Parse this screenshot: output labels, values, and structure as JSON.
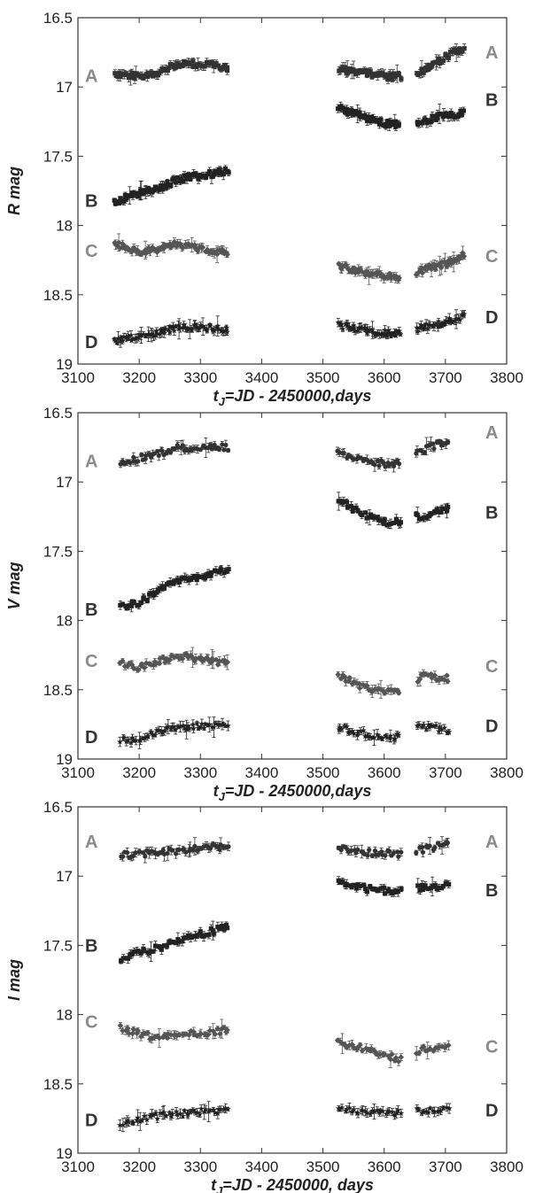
{
  "chart_data": [
    {
      "type": "scatter",
      "title": "",
      "ylabel": "R mag",
      "xlabel": "t_J=JD - 2450000,days",
      "xlabel_main": "t",
      "xlabel_sub": "J",
      "xlabel_rest": "=JD - 2450000,days",
      "xlim": [
        3100,
        3800
      ],
      "ylim": [
        19,
        16.5
      ],
      "y_inverted": true,
      "xticks": [
        "3100",
        "3200",
        "3300",
        "3400",
        "3500",
        "3600",
        "3700",
        "3800"
      ],
      "yticks": [
        "16.5",
        "17",
        "17.5",
        "18",
        "18.5",
        "19"
      ],
      "labels": {
        "left": [
          {
            "text": "A",
            "y": 16.92,
            "color": "#8a8a8a"
          },
          {
            "text": "B",
            "y": 17.82,
            "color": "#333333"
          },
          {
            "text": "C",
            "y": 18.18,
            "color": "#8a8a8a"
          },
          {
            "text": "D",
            "y": 18.84,
            "color": "#333333"
          }
        ],
        "right": [
          {
            "text": "A",
            "y": 16.75,
            "color": "#8a8a8a"
          },
          {
            "text": "B",
            "y": 17.09,
            "color": "#333333"
          },
          {
            "text": "C",
            "y": 18.22,
            "color": "#8a8a8a"
          },
          {
            "text": "D",
            "y": 18.66,
            "color": "#333333"
          }
        ]
      },
      "series": [
        {
          "name": "A",
          "color": "#333333",
          "marker": "square",
          "anchors1": [
            [
              3160,
              16.91
            ],
            [
              3200,
              16.92
            ],
            [
              3230,
              16.9
            ],
            [
              3260,
              16.84
            ],
            [
              3300,
              16.83
            ],
            [
              3345,
              16.86
            ]
          ],
          "anchors2": [
            [
              3525,
              16.87
            ],
            [
              3570,
              16.9
            ],
            [
              3610,
              16.93
            ],
            [
              3640,
              16.92
            ],
            [
              3665,
              16.88
            ],
            [
              3700,
              16.78
            ],
            [
              3730,
              16.72
            ]
          ]
        },
        {
          "name": "B",
          "color": "#222222",
          "marker": "square",
          "anchors1": [
            [
              3160,
              17.83
            ],
            [
              3200,
              17.77
            ],
            [
              3230,
              17.74
            ],
            [
              3260,
              17.67
            ],
            [
              3300,
              17.64
            ],
            [
              3345,
              17.61
            ]
          ],
          "anchors2": [
            [
              3525,
              17.15
            ],
            [
              3570,
              17.22
            ],
            [
              3610,
              17.27
            ],
            [
              3640,
              17.26
            ],
            [
              3665,
              17.25
            ],
            [
              3700,
              17.2
            ],
            [
              3730,
              17.19
            ]
          ]
        },
        {
          "name": "C",
          "color": "#555555",
          "marker": "diamond",
          "anchors1": [
            [
              3160,
              18.13
            ],
            [
              3200,
              18.19
            ],
            [
              3230,
              18.17
            ],
            [
              3260,
              18.13
            ],
            [
              3300,
              18.17
            ],
            [
              3345,
              18.2
            ]
          ],
          "anchors2": [
            [
              3525,
              18.29
            ],
            [
              3570,
              18.34
            ],
            [
              3610,
              18.37
            ],
            [
              3640,
              18.42
            ],
            [
              3665,
              18.31
            ],
            [
              3700,
              18.28
            ],
            [
              3730,
              18.21
            ]
          ]
        },
        {
          "name": "D",
          "color": "#222222",
          "marker": "star",
          "anchors1": [
            [
              3160,
              18.83
            ],
            [
              3200,
              18.8
            ],
            [
              3230,
              18.78
            ],
            [
              3260,
              18.74
            ],
            [
              3300,
              18.73
            ],
            [
              3345,
              18.75
            ]
          ],
          "anchors2": [
            [
              3525,
              18.72
            ],
            [
              3570,
              18.76
            ],
            [
              3610,
              18.78
            ],
            [
              3640,
              18.78
            ],
            [
              3665,
              18.73
            ],
            [
              3700,
              18.7
            ],
            [
              3730,
              18.66
            ]
          ]
        }
      ],
      "segments": [
        [
          3160,
          3345,
          80
        ],
        [
          3525,
          3730,
          95
        ]
      ]
    },
    {
      "type": "scatter",
      "title": "",
      "ylabel": "V mag",
      "xlabel": "t_J=JD - 2450000,days",
      "xlabel_main": "t",
      "xlabel_sub": "J",
      "xlabel_rest": "=JD - 2450000,days",
      "xlim": [
        3100,
        3800
      ],
      "ylim": [
        19,
        16.5
      ],
      "y_inverted": true,
      "xticks": [
        "3100",
        "3200",
        "3300",
        "3400",
        "3500",
        "3600",
        "3700",
        "3800"
      ],
      "yticks": [
        "16.5",
        "17",
        "17.5",
        "18",
        "18.5",
        "19"
      ],
      "labels": {
        "left": [
          {
            "text": "A",
            "y": 16.85,
            "color": "#8a8a8a"
          },
          {
            "text": "B",
            "y": 17.92,
            "color": "#333333"
          },
          {
            "text": "C",
            "y": 18.29,
            "color": "#8a8a8a"
          },
          {
            "text": "D",
            "y": 18.84,
            "color": "#333333"
          }
        ],
        "right": [
          {
            "text": "A",
            "y": 16.64,
            "color": "#8a8a8a"
          },
          {
            "text": "B",
            "y": 17.22,
            "color": "#333333"
          },
          {
            "text": "C",
            "y": 18.33,
            "color": "#8a8a8a"
          },
          {
            "text": "D",
            "y": 18.76,
            "color": "#333333"
          }
        ]
      },
      "series": [
        {
          "name": "A",
          "color": "#333333",
          "marker": "circle",
          "anchors1": [
            [
              3170,
              16.86
            ],
            [
              3200,
              16.83
            ],
            [
              3230,
              16.8
            ],
            [
              3260,
              16.75
            ],
            [
              3300,
              16.76
            ],
            [
              3345,
              16.75
            ]
          ],
          "anchors2": [
            [
              3525,
              16.78
            ],
            [
              3570,
              16.86
            ],
            [
              3610,
              16.87
            ],
            [
              3625,
              16.86
            ],
            [
              3665,
              16.77
            ],
            [
              3705,
              16.7
            ]
          ]
        },
        {
          "name": "B",
          "color": "#222222",
          "marker": "square",
          "anchors1": [
            [
              3170,
              17.9
            ],
            [
              3200,
              17.87
            ],
            [
              3230,
              17.79
            ],
            [
              3260,
              17.72
            ],
            [
              3300,
              17.68
            ],
            [
              3345,
              17.63
            ]
          ],
          "anchors2": [
            [
              3525,
              17.13
            ],
            [
              3570,
              17.24
            ],
            [
              3610,
              17.3
            ],
            [
              3625,
              17.28
            ],
            [
              3665,
              17.24
            ],
            [
              3705,
              17.2
            ]
          ]
        },
        {
          "name": "C",
          "color": "#555555",
          "marker": "diamond",
          "anchors1": [
            [
              3170,
              18.3
            ],
            [
              3200,
              18.34
            ],
            [
              3230,
              18.3
            ],
            [
              3260,
              18.25
            ],
            [
              3300,
              18.28
            ],
            [
              3345,
              18.31
            ]
          ],
          "anchors2": [
            [
              3525,
              18.39
            ],
            [
              3570,
              18.49
            ],
            [
              3610,
              18.52
            ],
            [
              3625,
              18.5
            ],
            [
              3665,
              18.4
            ],
            [
              3705,
              18.42
            ]
          ]
        },
        {
          "name": "D",
          "color": "#222222",
          "marker": "star",
          "anchors1": [
            [
              3170,
              18.87
            ],
            [
              3200,
              18.86
            ],
            [
              3230,
              18.8
            ],
            [
              3260,
              18.78
            ],
            [
              3300,
              18.76
            ],
            [
              3345,
              18.76
            ]
          ],
          "anchors2": [
            [
              3525,
              18.77
            ],
            [
              3570,
              18.82
            ],
            [
              3610,
              18.84
            ],
            [
              3625,
              18.83
            ],
            [
              3665,
              18.76
            ],
            [
              3705,
              18.8
            ]
          ]
        }
      ],
      "segments": [
        [
          3170,
          3345,
          55
        ],
        [
          3525,
          3705,
          55
        ]
      ]
    },
    {
      "type": "scatter",
      "title": "",
      "ylabel": "I mag",
      "xlabel": "t_J=JD - 2450000, days",
      "xlabel_main": "t",
      "xlabel_sub": "J",
      "xlabel_rest": "=JD - 2450000, days",
      "xlim": [
        3100,
        3800
      ],
      "ylim": [
        19,
        16.5
      ],
      "y_inverted": true,
      "xticks": [
        "3100",
        "3200",
        "3300",
        "3400",
        "3500",
        "3600",
        "3700",
        "3800"
      ],
      "yticks": [
        "16.5",
        "17",
        "17.5",
        "18",
        "18.5",
        "19"
      ],
      "labels": {
        "left": [
          {
            "text": "A",
            "y": 16.75,
            "color": "#8a8a8a"
          },
          {
            "text": "B",
            "y": 17.5,
            "color": "#333333"
          },
          {
            "text": "C",
            "y": 18.05,
            "color": "#8a8a8a"
          },
          {
            "text": "D",
            "y": 18.76,
            "color": "#333333"
          }
        ],
        "right": [
          {
            "text": "A",
            "y": 16.75,
            "color": "#8a8a8a"
          },
          {
            "text": "B",
            "y": 17.1,
            "color": "#333333"
          },
          {
            "text": "C",
            "y": 18.23,
            "color": "#8a8a8a"
          },
          {
            "text": "D",
            "y": 18.69,
            "color": "#333333"
          }
        ]
      },
      "series": [
        {
          "name": "A",
          "color": "#333333",
          "marker": "circle",
          "anchors1": [
            [
              3170,
              16.85
            ],
            [
              3200,
              16.84
            ],
            [
              3230,
              16.83
            ],
            [
              3260,
              16.82
            ],
            [
              3300,
              16.79
            ],
            [
              3345,
              16.79
            ]
          ],
          "anchors2": [
            [
              3525,
              16.8
            ],
            [
              3570,
              16.83
            ],
            [
              3610,
              16.84
            ],
            [
              3625,
              16.84
            ],
            [
              3665,
              16.81
            ],
            [
              3705,
              16.76
            ]
          ]
        },
        {
          "name": "B",
          "color": "#222222",
          "marker": "square",
          "anchors1": [
            [
              3170,
              17.62
            ],
            [
              3200,
              17.55
            ],
            [
              3230,
              17.52
            ],
            [
              3260,
              17.47
            ],
            [
              3300,
              17.42
            ],
            [
              3345,
              17.37
            ]
          ],
          "anchors2": [
            [
              3525,
              17.04
            ],
            [
              3570,
              17.09
            ],
            [
              3610,
              17.11
            ],
            [
              3625,
              17.11
            ],
            [
              3665,
              17.08
            ],
            [
              3705,
              17.07
            ]
          ]
        },
        {
          "name": "C",
          "color": "#555555",
          "marker": "diamond",
          "anchors1": [
            [
              3170,
              18.1
            ],
            [
              3200,
              18.14
            ],
            [
              3230,
              18.17
            ],
            [
              3260,
              18.14
            ],
            [
              3300,
              18.14
            ],
            [
              3345,
              18.11
            ]
          ],
          "anchors2": [
            [
              3525,
              18.2
            ],
            [
              3570,
              18.25
            ],
            [
              3610,
              18.3
            ],
            [
              3625,
              18.33
            ],
            [
              3665,
              18.24
            ],
            [
              3705,
              18.24
            ]
          ]
        },
        {
          "name": "D",
          "color": "#222222",
          "marker": "star",
          "anchors1": [
            [
              3170,
              18.8
            ],
            [
              3200,
              18.76
            ],
            [
              3230,
              18.73
            ],
            [
              3260,
              18.72
            ],
            [
              3300,
              18.7
            ],
            [
              3345,
              18.69
            ]
          ],
          "anchors2": [
            [
              3525,
              18.68
            ],
            [
              3570,
              18.7
            ],
            [
              3610,
              18.71
            ],
            [
              3625,
              18.7
            ],
            [
              3665,
              18.69
            ],
            [
              3705,
              18.67
            ]
          ]
        }
      ],
      "segments": [
        [
          3170,
          3345,
          50
        ],
        [
          3525,
          3705,
          50
        ]
      ]
    }
  ]
}
